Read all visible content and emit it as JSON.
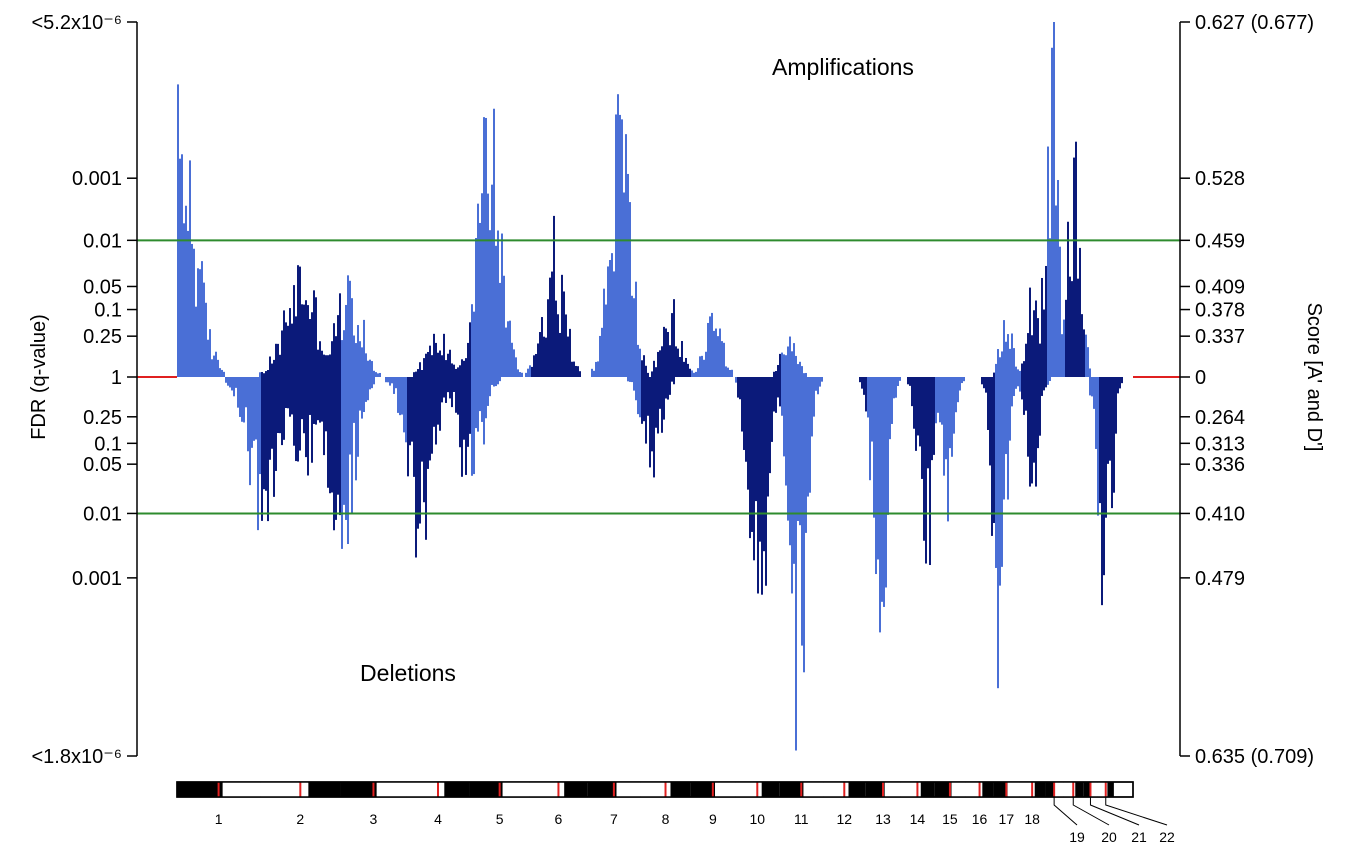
{
  "chart_data": {
    "type": "bar",
    "left_axis_label": "FDR (q-value)",
    "right_axis_label": "Score [A' and D']",
    "annotations": [
      "Amplifications",
      "Deletions"
    ],
    "colors": {
      "chrom_light": "#4a6fd6",
      "chrom_dark": "#0b1a7a",
      "threshold": "#2e8b2e",
      "baseline": "#e02020",
      "chrom_marker": "#e02020"
    },
    "amplification_ticks": [
      {
        "fdr": "<5.2x10⁻⁶",
        "score": "0.627 (0.677)",
        "level": 1.0
      },
      {
        "fdr": "0.001",
        "score": "0.528",
        "level": 0.56
      },
      {
        "fdr": "0.01",
        "score": "0.459",
        "level": 0.385
      },
      {
        "fdr": "0.05",
        "score": "0.409",
        "level": 0.255
      },
      {
        "fdr": "0.1",
        "score": "0.378",
        "level": 0.19
      },
      {
        "fdr": "0.25",
        "score": "0.337",
        "level": 0.115
      },
      {
        "fdr": "1",
        "score": "0",
        "level": 0
      }
    ],
    "deletion_ticks": [
      {
        "fdr": "0.25",
        "score": "0.264",
        "level": 0.105
      },
      {
        "fdr": "0.1",
        "score": "0.313",
        "level": 0.175
      },
      {
        "fdr": "0.05",
        "score": "0.336",
        "level": 0.23
      },
      {
        "fdr": "0.01",
        "score": "0.410",
        "level": 0.36
      },
      {
        "fdr": "0.001",
        "score": "0.479",
        "level": 0.53
      },
      {
        "fdr": "<1.8x10⁻⁶",
        "score": "0.635 (0.709)",
        "level": 1.0
      }
    ],
    "thresholds": {
      "amplification_level": 0.385,
      "deletion_level": 0.36
    },
    "chromosomes": [
      {
        "label": "1",
        "start": 0.0,
        "end": 0.087
      },
      {
        "label": "2",
        "start": 0.087,
        "end": 0.171
      },
      {
        "label": "3",
        "start": 0.171,
        "end": 0.24
      },
      {
        "label": "4",
        "start": 0.24,
        "end": 0.306
      },
      {
        "label": "5",
        "start": 0.306,
        "end": 0.369
      },
      {
        "label": "6",
        "start": 0.369,
        "end": 0.429
      },
      {
        "label": "7",
        "start": 0.429,
        "end": 0.485
      },
      {
        "label": "8",
        "start": 0.485,
        "end": 0.537
      },
      {
        "label": "9",
        "start": 0.537,
        "end": 0.584
      },
      {
        "label": "10",
        "start": 0.584,
        "end": 0.63
      },
      {
        "label": "11",
        "start": 0.63,
        "end": 0.676
      },
      {
        "label": "12",
        "start": 0.676,
        "end": 0.72
      },
      {
        "label": "13",
        "start": 0.72,
        "end": 0.757
      },
      {
        "label": "14",
        "start": 0.757,
        "end": 0.792
      },
      {
        "label": "15",
        "start": 0.792,
        "end": 0.825
      },
      {
        "label": "16",
        "start": 0.825,
        "end": 0.854
      },
      {
        "label": "17",
        "start": 0.854,
        "end": 0.881
      },
      {
        "label": "18",
        "start": 0.881,
        "end": 0.908
      },
      {
        "label": "19",
        "start": 0.908,
        "end": 0.927
      },
      {
        "label": "20",
        "start": 0.927,
        "end": 0.948
      },
      {
        "label": "21",
        "start": 0.948,
        "end": 0.963
      },
      {
        "label": "22",
        "start": 0.963,
        "end": 0.98
      }
    ],
    "amplification_peaks": [
      {
        "chrom": "1",
        "pos": 0.02,
        "level": 0.86
      },
      {
        "chrom": "1",
        "pos": 0.055,
        "level": 0.62
      },
      {
        "chrom": "2",
        "pos": 0.5,
        "level": 0.37
      },
      {
        "chrom": "3",
        "pos": 0.1,
        "level": 0.3
      },
      {
        "chrom": "4",
        "pos": 0.5,
        "level": 0.14
      },
      {
        "chrom": "5",
        "pos": 0.3,
        "level": 0.9
      },
      {
        "chrom": "6",
        "pos": 0.4,
        "level": 0.4
      },
      {
        "chrom": "7",
        "pos": 0.6,
        "level": 0.9
      },
      {
        "chrom": "8",
        "pos": 0.6,
        "level": 0.2
      },
      {
        "chrom": "9",
        "pos": 0.5,
        "level": 0.22
      },
      {
        "chrom": "11",
        "pos": 0.2,
        "level": 0.1
      },
      {
        "chrom": "17",
        "pos": 0.5,
        "level": 0.2
      },
      {
        "chrom": "18",
        "pos": 0.5,
        "level": 0.33
      },
      {
        "chrom": "19",
        "pos": 0.3,
        "level": 0.98
      },
      {
        "chrom": "20",
        "pos": 0.5,
        "level": 0.74
      }
    ],
    "deletion_peaks": [
      {
        "chrom": "2",
        "pos": 0.05,
        "level": 0.4
      },
      {
        "chrom": "2",
        "pos": 0.5,
        "level": 0.25
      },
      {
        "chrom": "3",
        "pos": 0.0,
        "level": 0.55
      },
      {
        "chrom": "4",
        "pos": 0.2,
        "level": 0.55
      },
      {
        "chrom": "5",
        "pos": 0.0,
        "level": 0.3
      },
      {
        "chrom": "8",
        "pos": 0.2,
        "level": 0.29
      },
      {
        "chrom": "10",
        "pos": 0.5,
        "level": 0.9
      },
      {
        "chrom": "11",
        "pos": 0.4,
        "level": 0.88
      },
      {
        "chrom": "13",
        "pos": 0.4,
        "level": 0.95
      },
      {
        "chrom": "14",
        "pos": 0.7,
        "level": 0.7
      },
      {
        "chrom": "15",
        "pos": 0.4,
        "level": 0.4
      },
      {
        "chrom": "17",
        "pos": 0.2,
        "level": 0.95
      },
      {
        "chrom": "18",
        "pos": 0.5,
        "level": 0.35
      },
      {
        "chrom": "22",
        "pos": 0.4,
        "level": 0.7
      }
    ]
  }
}
